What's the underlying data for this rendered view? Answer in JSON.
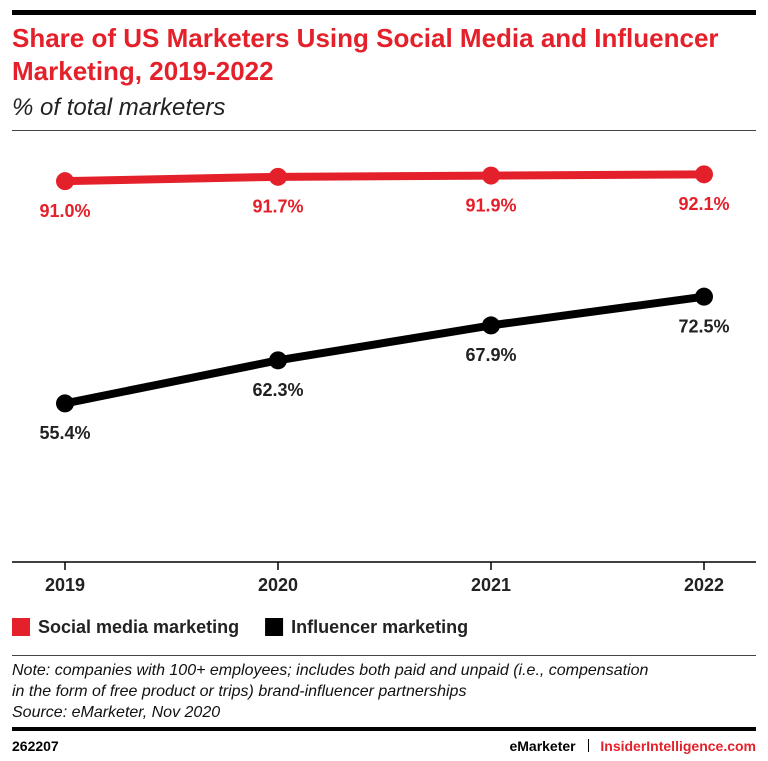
{
  "chart_data": {
    "type": "line",
    "title": "Share of US Marketers Using Social Media and Influencer Marketing, 2019-2022",
    "subtitle": "% of total marketers",
    "categories": [
      "2019",
      "2020",
      "2021",
      "2022"
    ],
    "series": [
      {
        "name": "Social media marketing",
        "color": "#e4202a",
        "values": [
          91.0,
          91.7,
          91.9,
          92.1
        ],
        "value_labels": [
          "91.0%",
          "91.7%",
          "91.9%",
          "92.1%"
        ]
      },
      {
        "name": "Influencer marketing",
        "color": "#000000",
        "values": [
          55.4,
          62.3,
          67.9,
          72.5
        ],
        "value_labels": [
          "55.4%",
          "62.3%",
          "67.9%",
          "72.5%"
        ]
      }
    ],
    "ylim": [
      30,
      100
    ],
    "legend": "bottom"
  },
  "note": [
    "Note: companies with 100+ employees; includes both paid and unpaid (i.e., compensation",
    "in the form of free product or trips) brand-influencer partnerships"
  ],
  "source": "Source: eMarketer, Nov 2020",
  "chart_id": "262207",
  "footer": {
    "brand": "eMarketer",
    "site": "InsiderIntelligence.com"
  }
}
